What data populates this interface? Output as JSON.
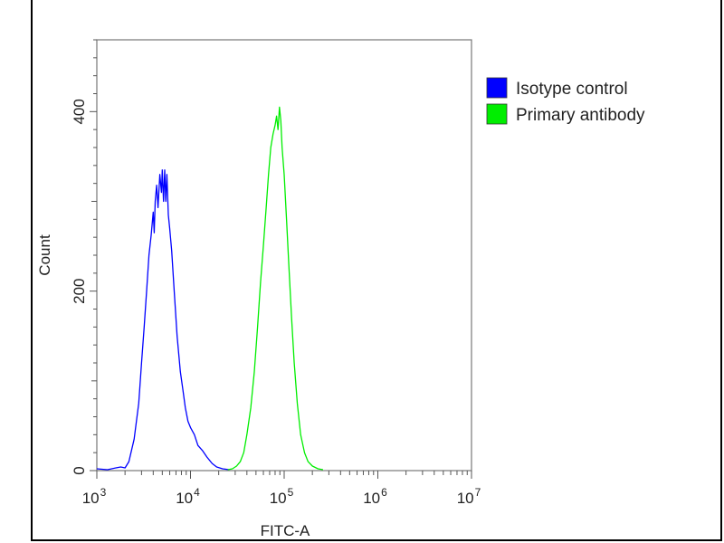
{
  "chart_data": {
    "type": "line",
    "title": "",
    "xlabel": "FITC-A",
    "ylabel": "Count",
    "x_scale": "log",
    "xlim": [
      1000,
      10000000
    ],
    "ylim": [
      0,
      480
    ],
    "x_ticks": [
      {
        "value": 1000,
        "base": "10",
        "exp": "3"
      },
      {
        "value": 10000,
        "base": "10",
        "exp": "4"
      },
      {
        "value": 100000,
        "base": "10",
        "exp": "5"
      },
      {
        "value": 1000000,
        "base": "10",
        "exp": "6"
      },
      {
        "value": 10000000,
        "base": "10",
        "exp": "7"
      }
    ],
    "y_ticks": [
      {
        "value": 0,
        "label": "0"
      },
      {
        "value": 200,
        "label": "200"
      },
      {
        "value": 400,
        "label": "400"
      }
    ],
    "legend_position": "top-right",
    "series": [
      {
        "name": "Isotype control",
        "color": "#0000ff",
        "points": [
          [
            1000,
            2
          ],
          [
            1300,
            1
          ],
          [
            1600,
            3
          ],
          [
            1800,
            4
          ],
          [
            2000,
            3
          ],
          [
            2200,
            10
          ],
          [
            2500,
            35
          ],
          [
            2800,
            75
          ],
          [
            3000,
            120
          ],
          [
            3200,
            160
          ],
          [
            3400,
            200
          ],
          [
            3600,
            240
          ],
          [
            3800,
            262
          ],
          [
            4000,
            288
          ],
          [
            4100,
            265
          ],
          [
            4200,
            300
          ],
          [
            4350,
            318
          ],
          [
            4500,
            293
          ],
          [
            4700,
            330
          ],
          [
            4900,
            310
          ],
          [
            5000,
            335
          ],
          [
            5150,
            300
          ],
          [
            5300,
            335
          ],
          [
            5450,
            300
          ],
          [
            5600,
            330
          ],
          [
            5800,
            285
          ],
          [
            6000,
            270
          ],
          [
            6300,
            245
          ],
          [
            6700,
            200
          ],
          [
            7200,
            150
          ],
          [
            7800,
            110
          ],
          [
            8300,
            90
          ],
          [
            8800,
            70
          ],
          [
            9400,
            55
          ],
          [
            10000,
            48
          ],
          [
            11000,
            40
          ],
          [
            12000,
            28
          ],
          [
            13500,
            22
          ],
          [
            15000,
            15
          ],
          [
            17000,
            8
          ],
          [
            19000,
            4
          ],
          [
            22000,
            2
          ],
          [
            26000,
            1
          ]
        ]
      },
      {
        "name": "Primary antibody",
        "color": "#00ee00",
        "points": [
          [
            25000,
            1
          ],
          [
            28000,
            2
          ],
          [
            31000,
            5
          ],
          [
            34000,
            10
          ],
          [
            37000,
            20
          ],
          [
            40000,
            40
          ],
          [
            44000,
            70
          ],
          [
            48000,
            110
          ],
          [
            52000,
            160
          ],
          [
            56000,
            210
          ],
          [
            60000,
            250
          ],
          [
            64000,
            290
          ],
          [
            68000,
            330
          ],
          [
            72000,
            360
          ],
          [
            76000,
            375
          ],
          [
            80000,
            385
          ],
          [
            83000,
            395
          ],
          [
            86000,
            380
          ],
          [
            89000,
            405
          ],
          [
            92000,
            390
          ],
          [
            95000,
            360
          ],
          [
            100000,
            330
          ],
          [
            106000,
            280
          ],
          [
            112000,
            230
          ],
          [
            120000,
            170
          ],
          [
            128000,
            120
          ],
          [
            138000,
            75
          ],
          [
            150000,
            40
          ],
          [
            165000,
            20
          ],
          [
            180000,
            10
          ],
          [
            200000,
            5
          ],
          [
            230000,
            2
          ],
          [
            260000,
            1
          ]
        ]
      }
    ]
  }
}
